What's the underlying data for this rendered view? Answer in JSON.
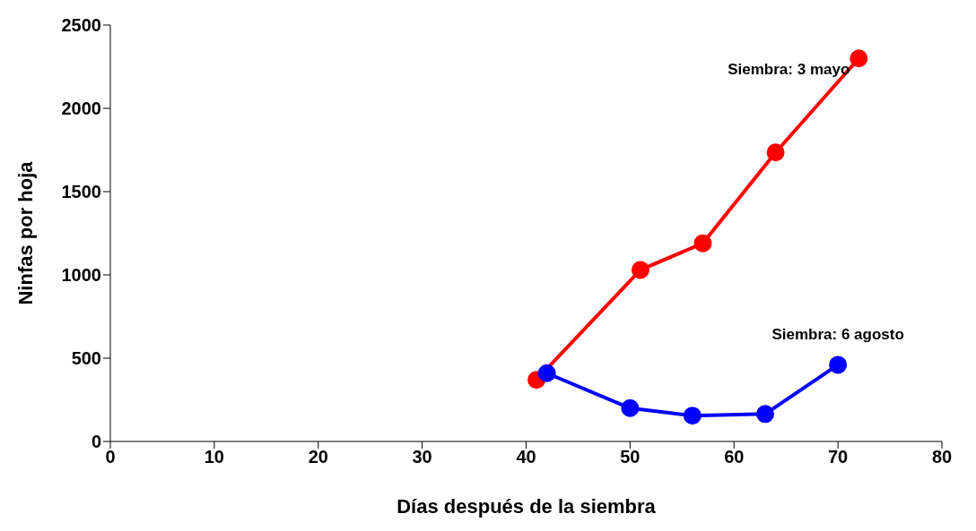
{
  "chart_data": {
    "type": "line",
    "xlabel": "Días después de la siembra",
    "ylabel": "Ninfas por hoja",
    "xlim": [
      0,
      80
    ],
    "xticks": [
      0,
      10,
      20,
      30,
      40,
      50,
      60,
      70,
      80
    ],
    "ylim": [
      0,
      2500
    ],
    "yticks": [
      0,
      500,
      1000,
      1500,
      2000,
      2500
    ],
    "grid": false,
    "legend": false,
    "marker": "circle",
    "line_style": "solid",
    "series": [
      {
        "name": "Siembra: 3 mayo",
        "color": "#ff0000",
        "x": [
          41,
          51,
          57,
          64,
          72
        ],
        "values": [
          370,
          1030,
          1190,
          1735,
          2300
        ]
      },
      {
        "name": "Siembra: 6 agosto",
        "color": "#0000ff",
        "x": [
          42,
          50,
          56,
          63,
          70
        ],
        "values": [
          410,
          200,
          155,
          165,
          460
        ]
      }
    ]
  }
}
